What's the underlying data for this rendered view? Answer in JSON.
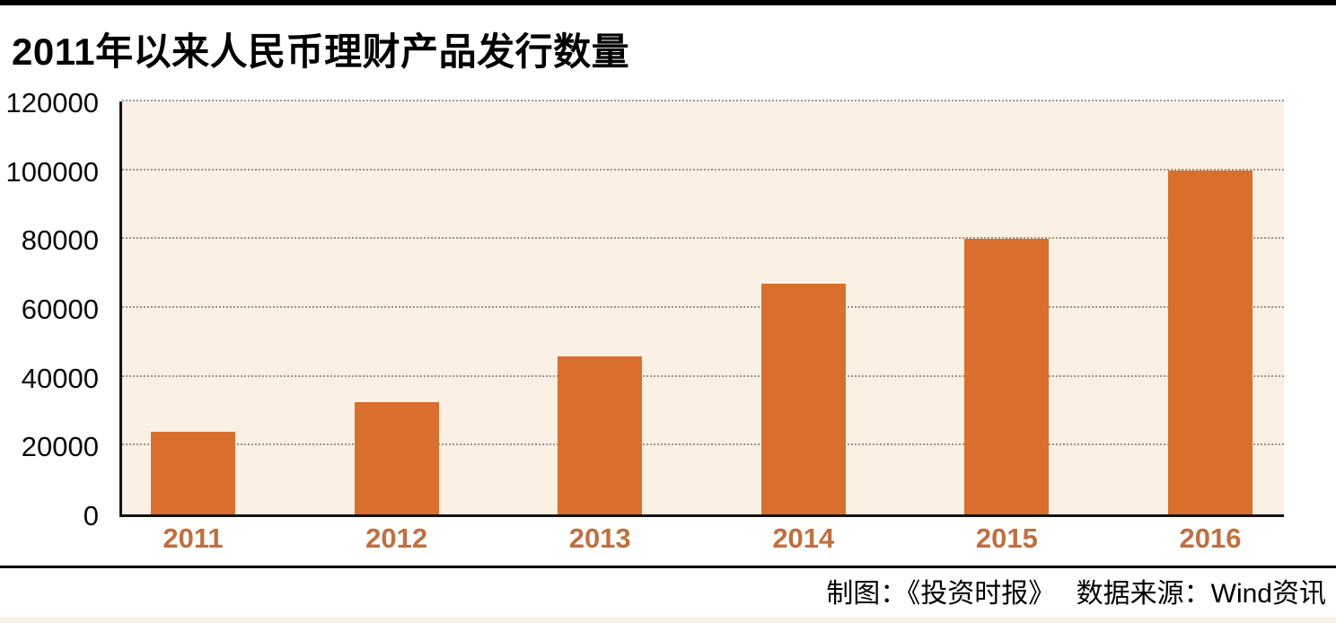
{
  "title": "2011年以来人民币理财产品发行数量",
  "footer": {
    "credit": "制图：《投资时报》　 数据来源：Wind资讯"
  },
  "colors": {
    "bar": "#d96e2d",
    "plot_background": "#faf0e3",
    "x_tick_label": "#c06f41",
    "axis_line": "#141414",
    "top_bar": "#000000",
    "footer_rule": "#000000",
    "bottom_strip": "#faf0e3"
  },
  "chart_data": {
    "type": "bar",
    "title": "2011年以来人民币理财产品发行数量",
    "categories": [
      "2011",
      "2012",
      "2013",
      "2014",
      "2015",
      "2016"
    ],
    "values": [
      24000,
      32500,
      46000,
      67000,
      80000,
      100000
    ],
    "xlabel": "",
    "ylabel": "",
    "ylim": [
      0,
      120000
    ],
    "yticks": [
      0,
      20000,
      40000,
      60000,
      80000,
      100000,
      120000
    ],
    "grid": "horizontal-dotted",
    "legend": "none"
  }
}
